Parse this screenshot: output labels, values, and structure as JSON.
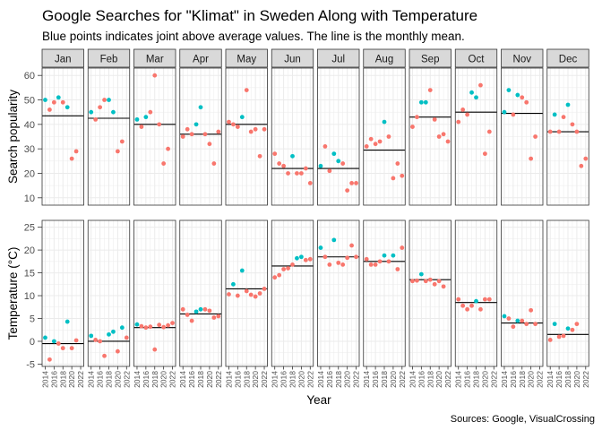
{
  "title": "Google Searches for \"Klimat\" in Sweden Along with Temperature",
  "subtitle": "Blue points indicates joint above average values. The line is the monthly mean.",
  "caption": "Sources: Google, VisualCrossing",
  "colors": {
    "above": "#00BFC4",
    "other": "#F8766D",
    "strip_fill": "#D9D9D9",
    "grid": "#EBEBEB"
  },
  "chart_data": {
    "type": "scatter",
    "facets": [
      "Jan",
      "Feb",
      "Mar",
      "Apr",
      "May",
      "Jun",
      "Jul",
      "Aug",
      "Sep",
      "Oct",
      "Nov",
      "Dec"
    ],
    "xlabel": "Year",
    "x_ticks": [
      2014,
      2016,
      2018,
      2020,
      2022
    ],
    "x_tick_labels": [
      "2014",
      "2016",
      "2018",
      "2020",
      "2022"
    ],
    "xlim": [
      2013.3,
      2022.7
    ],
    "years": [
      2014,
      2015,
      2016,
      2017,
      2018,
      2019,
      2020,
      2021,
      2022
    ],
    "panels": [
      {
        "ylabel": "Search popularity",
        "ylim": [
          7,
          63
        ],
        "y_ticks": [
          10,
          20,
          30,
          40,
          50,
          60
        ],
        "y_tick_labels": [
          "10",
          "20",
          "30",
          "40",
          "50",
          "60"
        ],
        "means": [
          43.5,
          42.5,
          40,
          36,
          40,
          22,
          22,
          29.5,
          43,
          45,
          44.5,
          37
        ],
        "values": [
          [
            50,
            46,
            49,
            51,
            49,
            47,
            26,
            29,
            null
          ],
          [
            45,
            42,
            47,
            50,
            50,
            45,
            29,
            33,
            null
          ],
          [
            42,
            39,
            43,
            45,
            60,
            40,
            24,
            30,
            null
          ],
          [
            35,
            38,
            36,
            40,
            47,
            36,
            32,
            24,
            37
          ],
          [
            41,
            40,
            39,
            43,
            54,
            37,
            38,
            27,
            38
          ],
          [
            28,
            24,
            23,
            20,
            27,
            20,
            20,
            22,
            16
          ],
          [
            23,
            31,
            21,
            28,
            25,
            24,
            13,
            16,
            16
          ],
          [
            31,
            34,
            32,
            33,
            41,
            35,
            18,
            24,
            19
          ],
          [
            39,
            43,
            49,
            49,
            54,
            42,
            35,
            36,
            33
          ],
          [
            41,
            46,
            44,
            53,
            51,
            56,
            28,
            37,
            null
          ],
          [
            45,
            54,
            44,
            52,
            51,
            49,
            26,
            35,
            null
          ],
          [
            37,
            44,
            37,
            43,
            48,
            40,
            37,
            23,
            26
          ]
        ],
        "above": [
          [
            true,
            false,
            false,
            true,
            false,
            true,
            false,
            false,
            null
          ],
          [
            true,
            false,
            false,
            false,
            true,
            true,
            false,
            false,
            null
          ],
          [
            true,
            false,
            true,
            false,
            false,
            false,
            false,
            false,
            null
          ],
          [
            false,
            false,
            false,
            true,
            true,
            false,
            false,
            false,
            false
          ],
          [
            false,
            false,
            false,
            true,
            false,
            false,
            false,
            false,
            false
          ],
          [
            false,
            false,
            false,
            false,
            true,
            false,
            false,
            false,
            false
          ],
          [
            true,
            false,
            false,
            true,
            true,
            false,
            false,
            false,
            false
          ],
          [
            false,
            false,
            false,
            false,
            true,
            false,
            false,
            false,
            false
          ],
          [
            false,
            false,
            true,
            true,
            false,
            false,
            false,
            false,
            false
          ],
          [
            false,
            false,
            false,
            true,
            true,
            false,
            false,
            false,
            null
          ],
          [
            true,
            true,
            false,
            true,
            false,
            false,
            false,
            false,
            null
          ],
          [
            false,
            true,
            false,
            false,
            true,
            false,
            false,
            false,
            false
          ]
        ]
      },
      {
        "ylabel": "Temperature (°C)",
        "ylim": [
          -5.5,
          26.5
        ],
        "y_ticks": [
          -5,
          0,
          5,
          10,
          15,
          20,
          25
        ],
        "y_tick_labels": [
          "-5",
          "0",
          "5",
          "10",
          "15",
          "20",
          "25"
        ],
        "means": [
          -0.5,
          0,
          3,
          6,
          11.5,
          16.5,
          18.5,
          17.5,
          13.5,
          8.5,
          4,
          1.5
        ],
        "values": [
          [
            0.8,
            -4,
            0,
            -0.5,
            -1.5,
            4.3,
            -1.5,
            0.2,
            null
          ],
          [
            1.2,
            0.3,
            0,
            -3.2,
            1.5,
            2.1,
            -2.2,
            3,
            0.8
          ],
          [
            3.7,
            3.3,
            3,
            3.2,
            -1.8,
            3.6,
            3.1,
            3.5,
            4
          ],
          [
            7,
            5.8,
            4.5,
            6.5,
            7,
            7,
            6.7,
            5.2,
            5.5
          ],
          [
            10.3,
            12.5,
            10,
            15.5,
            11,
            10.2,
            9.8,
            10.5,
            11.5
          ],
          [
            14,
            14.5,
            15.8,
            16,
            16.8,
            18.2,
            18.5,
            17.8,
            18
          ],
          [
            20.5,
            18.5,
            16.8,
            22.2,
            17.2,
            16.8,
            18.3,
            21,
            18.5
          ],
          [
            18,
            16.8,
            16.8,
            17.5,
            18.8,
            17.5,
            18.8,
            15.8,
            20.5
          ],
          [
            13.2,
            13.3,
            14.7,
            13.2,
            13.5,
            12.5,
            13.2,
            12,
            null
          ],
          [
            9.2,
            7.8,
            7,
            7.8,
            8.8,
            7,
            9.2,
            9.2,
            null
          ],
          [
            5.5,
            5,
            3.2,
            4.5,
            4.5,
            3.8,
            6.8,
            3.8,
            null
          ],
          [
            0.3,
            3.8,
            1,
            1.2,
            2.8,
            2.5,
            3.8,
            null,
            null
          ]
        ],
        "above": [
          [
            true,
            false,
            true,
            false,
            false,
            true,
            false,
            false,
            null
          ],
          [
            true,
            false,
            false,
            false,
            true,
            true,
            false,
            true,
            false
          ],
          [
            true,
            false,
            false,
            false,
            false,
            false,
            false,
            false,
            false
          ],
          [
            false,
            false,
            false,
            true,
            true,
            false,
            false,
            false,
            false
          ],
          [
            false,
            true,
            false,
            true,
            false,
            false,
            false,
            false,
            false
          ],
          [
            false,
            false,
            false,
            false,
            false,
            true,
            true,
            false,
            false
          ],
          [
            true,
            false,
            false,
            true,
            false,
            false,
            false,
            false,
            false
          ],
          [
            false,
            false,
            false,
            false,
            true,
            false,
            true,
            false,
            false
          ],
          [
            false,
            false,
            true,
            false,
            false,
            false,
            false,
            false,
            null
          ],
          [
            false,
            false,
            false,
            false,
            true,
            false,
            false,
            false,
            null
          ],
          [
            true,
            false,
            false,
            true,
            false,
            false,
            false,
            false,
            null
          ],
          [
            false,
            true,
            false,
            false,
            true,
            false,
            false,
            null,
            null
          ]
        ]
      }
    ]
  }
}
